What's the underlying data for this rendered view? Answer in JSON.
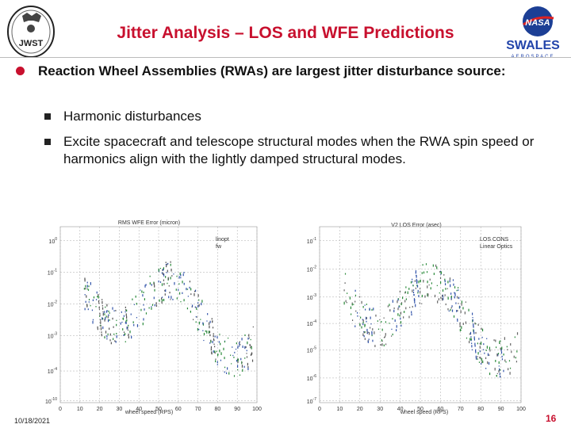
{
  "slide": {
    "title": "Jitter Analysis – LOS and WFE Predictions",
    "bullet": "Reaction Wheel Assemblies (RWAs) are largest jitter disturbance source:",
    "sub_bullets": [
      "Harmonic disturbances",
      "Excite spacecraft and telescope structural modes when the RWA spin speed or harmonics align with the lightly damped structural modes."
    ],
    "date": "10/18/2021",
    "page": "16",
    "colors": {
      "title": "#c8102e",
      "bullet_dot": "#c8102e",
      "page_number": "#c8102e"
    }
  },
  "logos": {
    "left": {
      "text": "JWST"
    },
    "right": {
      "name": "NASA",
      "company": "SWALES",
      "sub": "AEROSPACE"
    }
  },
  "chart_data": [
    {
      "type": "scatter",
      "title": "RMS WFE Error (micron)",
      "xlabel": "wheel speed (RPS)",
      "ylabel": "",
      "x_ticks": [
        "0",
        "10",
        "20",
        "30",
        "40",
        "50",
        "60",
        "70",
        "80",
        "90",
        "100"
      ],
      "y_ticks": [
        "10^0",
        "10^-1",
        "10^-2",
        "10^-3",
        "10^-4",
        "10^-10"
      ],
      "legend": [
        "linopt",
        "fw"
      ],
      "log_y": true,
      "xlim": [
        0,
        100
      ],
      "grid": true,
      "legend_position": "top-right"
    },
    {
      "type": "scatter",
      "title": "V2 LOS Error (asec)",
      "xlabel": "wheel speed (RPS)",
      "ylabel": "",
      "x_ticks": [
        "0",
        "10",
        "20",
        "30",
        "40",
        "50",
        "60",
        "70",
        "80",
        "90",
        "100"
      ],
      "y_ticks": [
        "10^-1",
        "10^-2",
        "10^-3",
        "10^-4",
        "10^-5",
        "10^-6",
        "10^-7"
      ],
      "legend": [
        "LOS CONS",
        "Linear Optics"
      ],
      "log_y": true,
      "xlim": [
        0,
        100
      ],
      "grid": true,
      "legend_position": "top-right"
    }
  ]
}
